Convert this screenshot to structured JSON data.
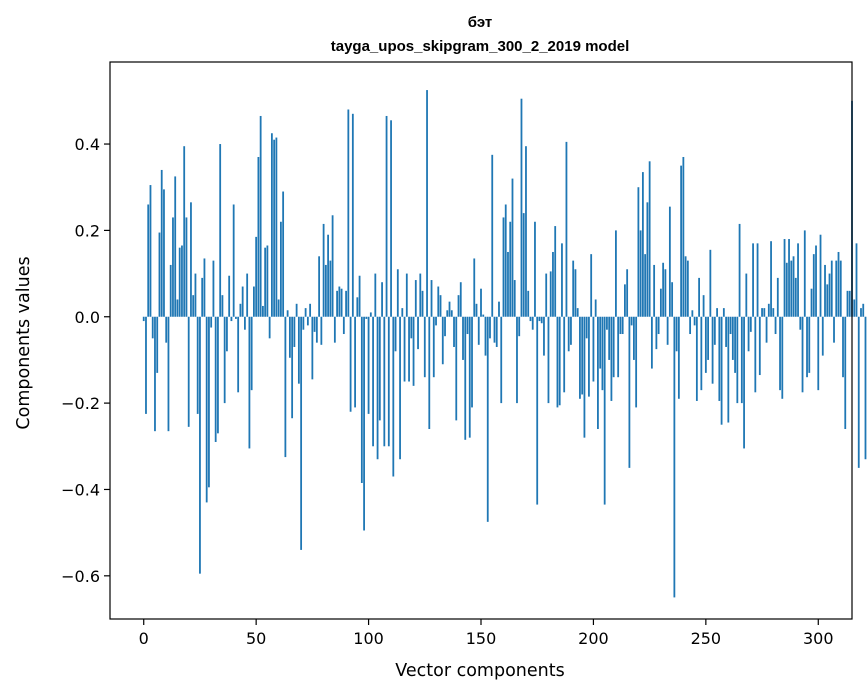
{
  "chart_data": {
    "type": "bar",
    "title_line1": "бэт",
    "title_line2": "tayga_upos_skipgram_300_2_2019 model",
    "xlabel": "Vector components",
    "ylabel": "Components values",
    "xlim": [
      -15,
      315
    ],
    "ylim": [
      -0.7,
      0.59
    ],
    "xticks": [
      0,
      50,
      100,
      150,
      200,
      250,
      300
    ],
    "xtick_labels": [
      "0",
      "50",
      "100",
      "150",
      "200",
      "250",
      "300"
    ],
    "yticks": [
      -0.6,
      -0.4,
      -0.2,
      0.0,
      0.2,
      0.4
    ],
    "ytick_labels": [
      "−0.6",
      "−0.4",
      "−0.2",
      "0.0",
      "0.2",
      "0.4"
    ],
    "bar_color": "#1f77b4",
    "values": [
      -0.01,
      -0.225,
      0.26,
      0.305,
      -0.05,
      -0.265,
      -0.13,
      0.195,
      0.34,
      0.295,
      -0.06,
      -0.265,
      0.12,
      0.23,
      0.325,
      0.04,
      0.16,
      0.165,
      0.395,
      0.23,
      -0.255,
      0.265,
      0.05,
      0.1,
      -0.225,
      -0.595,
      0.09,
      0.135,
      -0.43,
      -0.395,
      -0.025,
      0.13,
      -0.29,
      -0.27,
      0.4,
      0.05,
      -0.2,
      -0.08,
      0.095,
      -0.01,
      0.26,
      -0.005,
      -0.175,
      0.03,
      0.07,
      -0.03,
      0.1,
      -0.305,
      -0.17,
      0.07,
      0.185,
      0.37,
      0.465,
      0.025,
      0.16,
      0.165,
      -0.05,
      0.425,
      0.41,
      0.415,
      0.04,
      0.22,
      0.29,
      -0.325,
      0.015,
      -0.095,
      -0.235,
      -0.07,
      0.03,
      -0.155,
      -0.54,
      -0.03,
      0.02,
      -0.02,
      0.03,
      -0.145,
      -0.035,
      -0.06,
      0.14,
      -0.065,
      0.215,
      0.12,
      0.19,
      0.13,
      0.235,
      -0.06,
      0.06,
      0.07,
      0.065,
      -0.04,
      0.06,
      0.48,
      -0.22,
      0.47,
      -0.21,
      0.045,
      0.095,
      -0.385,
      -0.495,
      -0.005,
      -0.225,
      0.01,
      -0.3,
      0.1,
      -0.33,
      -0.24,
      0.08,
      -0.3,
      0.465,
      -0.3,
      0.455,
      -0.37,
      -0.08,
      0.11,
      -0.33,
      0.02,
      -0.15,
      0.1,
      -0.15,
      -0.05,
      -0.16,
      0.085,
      -0.075,
      0.1,
      0.06,
      -0.14,
      0.525,
      -0.26,
      0.085,
      -0.14,
      -0.02,
      0.07,
      0.05,
      -0.11,
      -0.045,
      0.015,
      0.035,
      0.015,
      -0.07,
      -0.24,
      0.05,
      0.08,
      -0.1,
      -0.285,
      -0.04,
      -0.28,
      -0.21,
      0.135,
      0.03,
      -0.065,
      0.065,
      0.005,
      -0.09,
      -0.475,
      -0.05,
      0.375,
      -0.06,
      -0.07,
      0.035,
      -0.2,
      0.23,
      0.26,
      0.15,
      0.22,
      0.32,
      0.085,
      -0.2,
      -0.045,
      0.505,
      0.24,
      0.395,
      0.06,
      -0.01,
      -0.03,
      0.22,
      -0.435,
      -0.01,
      -0.015,
      -0.09,
      0.1,
      -0.2,
      0.105,
      0.15,
      0.21,
      -0.21,
      -0.205,
      0.17,
      -0.175,
      0.405,
      -0.08,
      -0.065,
      0.13,
      0.11,
      0.02,
      -0.19,
      -0.18,
      -0.28,
      -0.05,
      -0.185,
      0.145,
      -0.15,
      0.04,
      -0.26,
      -0.12,
      -0.17,
      -0.435,
      -0.03,
      -0.1,
      -0.195,
      -0.14,
      0.2,
      -0.14,
      -0.04,
      -0.04,
      0.075,
      0.11,
      -0.35,
      -0.02,
      -0.1,
      -0.21,
      0.3,
      0.2,
      0.335,
      0.145,
      0.265,
      0.36,
      -0.12,
      0.12,
      -0.075,
      -0.04,
      0.065,
      0.125,
      0.11,
      -0.065,
      0.255,
      0.08,
      -0.65,
      -0.08,
      -0.19,
      0.35,
      0.37,
      0.14,
      0.13,
      -0.04,
      0.015,
      -0.02,
      -0.195,
      0.09,
      -0.17,
      0.05,
      -0.13,
      -0.1,
      0.155,
      -0.155,
      -0.065,
      0.02,
      -0.195,
      -0.25,
      0.02,
      -0.07,
      -0.245,
      -0.04,
      -0.1,
      -0.13,
      -0.2,
      0.215,
      -0.2,
      -0.305,
      0.1,
      -0.08,
      -0.035,
      0.17,
      -0.175,
      0.17,
      -0.135,
      0.02,
      0.02,
      -0.06,
      0.03,
      0.175,
      0.02,
      -0.04,
      0.09,
      -0.17,
      -0.19,
      0.18,
      0.125,
      0.18,
      0.13,
      0.14,
      0.09,
      0.17,
      -0.03,
      -0.175,
      0.2,
      -0.14,
      -0.13,
      0.065,
      0.145,
      0.165,
      -0.17,
      0.19,
      -0.09,
      0.12,
      0.075,
      0.1,
      0.13,
      -0.06,
      0.13,
      0.15,
      0.13,
      -0.14,
      -0.26,
      0.06,
      0.06,
      0.5,
      0.04,
      0.17,
      -0.35,
      0.02,
      0.03,
      -0.33
    ]
  }
}
